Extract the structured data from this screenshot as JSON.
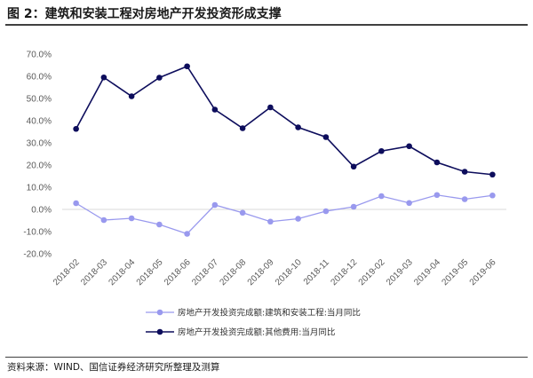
{
  "figure_title": "图 2：建筑和安装工程对房地产开发投资形成支撑",
  "source": "资料来源：WIND、国信证券经济研究所整理及测算",
  "chart_data": {
    "type": "line",
    "categories": [
      "2018-02",
      "2018-03",
      "2018-04",
      "2018-05",
      "2018-06",
      "2018-07",
      "2018-08",
      "2018-09",
      "2018-10",
      "2018-11",
      "2018-12",
      "2019-02",
      "2019-03",
      "2019-04",
      "2019-05",
      "2019-06"
    ],
    "ylim": [
      -20,
      70
    ],
    "yticks": [
      "70.0%",
      "60.0%",
      "50.0%",
      "40.0%",
      "30.0%",
      "20.0%",
      "10.0%",
      "0.0%",
      "-10.0%",
      "-20.0%"
    ],
    "ytick_values": [
      70,
      60,
      50,
      40,
      30,
      20,
      10,
      0,
      -10,
      -20
    ],
    "grid": false,
    "legend_position": "bottom",
    "series": [
      {
        "name": "房地产开发投资完成额:建筑和安装工程:当月同比",
        "color": "#9999ee",
        "values": [
          2.8,
          -4.8,
          -4.0,
          -6.8,
          -11.0,
          2.0,
          -1.5,
          -5.5,
          -4.2,
          -0.8,
          1.2,
          6.0,
          2.9,
          6.5,
          4.6,
          6.3
        ]
      },
      {
        "name": "房地产开发投资完成额:其他费用:当月同比",
        "color": "#0d0d5c",
        "values": [
          36.3,
          59.5,
          51.0,
          59.4,
          64.5,
          45.0,
          36.6,
          46.0,
          37.0,
          32.6,
          19.3,
          26.3,
          28.5,
          21.2,
          17.0,
          15.7
        ]
      }
    ]
  }
}
